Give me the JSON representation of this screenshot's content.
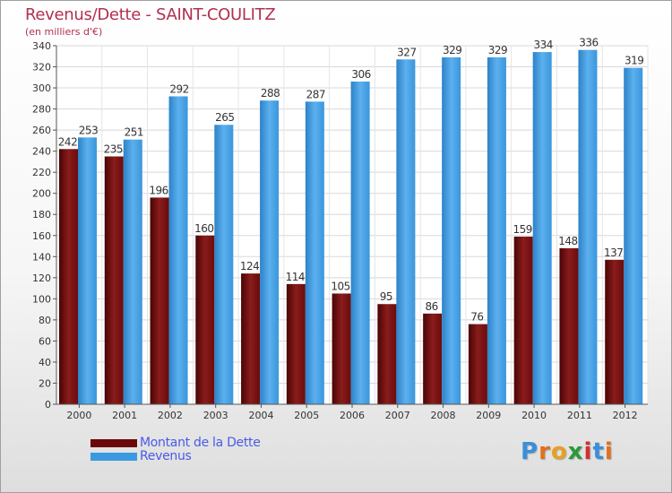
{
  "chart_data": {
    "type": "bar",
    "title": "Revenus/Dette - SAINT-COULITZ",
    "subtitle": "(en milliers d'€)",
    "categories": [
      "2000",
      "2001",
      "2002",
      "2003",
      "2004",
      "2005",
      "2006",
      "2007",
      "2008",
      "2009",
      "2010",
      "2011",
      "2012"
    ],
    "series": [
      {
        "name": "Montant de la Dette",
        "color": "#7a1010",
        "values": [
          242,
          235,
          196,
          160,
          124,
          114,
          105,
          95,
          86,
          76,
          159,
          148,
          137
        ]
      },
      {
        "name": "Revenus",
        "color": "#3a9ae0",
        "values": [
          253,
          251,
          292,
          265,
          288,
          287,
          306,
          327,
          329,
          329,
          334,
          336,
          319
        ]
      }
    ],
    "ylim": [
      0,
      340
    ],
    "ytick_step": 20,
    "grid": true,
    "legend_position": "bottom-left"
  },
  "logo": {
    "letters": [
      {
        "ch": "P",
        "color": "#3a8fd8"
      },
      {
        "ch": "r",
        "color": "#e07020"
      },
      {
        "ch": "o",
        "color": "#e8a020"
      },
      {
        "ch": "x",
        "color": "#2a9a3a"
      },
      {
        "ch": "i",
        "color": "#d03030"
      },
      {
        "ch": "t",
        "color": "#3a8fd8"
      },
      {
        "ch": "i",
        "color": "#e07020"
      }
    ]
  }
}
